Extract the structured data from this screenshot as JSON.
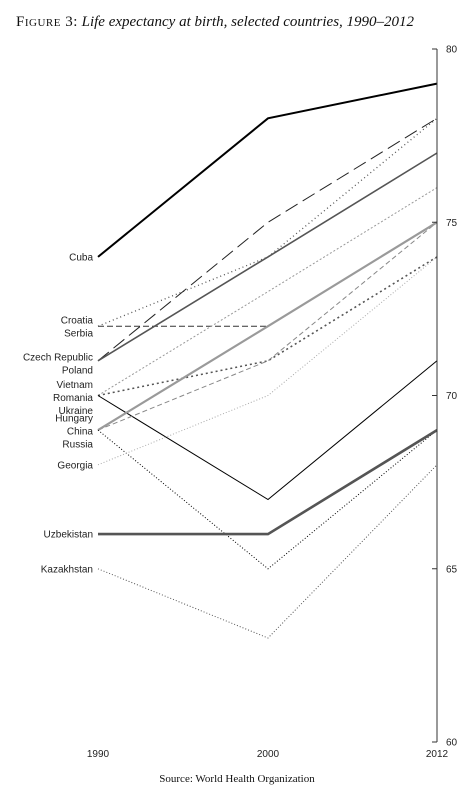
{
  "figure": {
    "label": "Figure 3:",
    "subtitle": "Life expectancy at birth, selected countries, 1990–2012",
    "source": "Source: World Health Organization"
  },
  "chart_data": {
    "type": "line",
    "title": "Figure 3: Life expectancy at birth, selected countries, 1990–2012",
    "x": [
      1990,
      2000,
      2012
    ],
    "x_tick_labels": [
      "1990",
      "2000",
      "2012"
    ],
    "ylim": [
      60,
      80
    ],
    "y_ticks": [
      60,
      65,
      70,
      75,
      80
    ],
    "y_axis_position": "right",
    "grid": false,
    "legend": "direct labels at left of 1990 points",
    "series": [
      {
        "name": "Cuba",
        "values": [
          74,
          78,
          79
        ],
        "color": "#000000",
        "dash": "solid",
        "width": 2
      },
      {
        "name": "Croatia",
        "values": [
          72,
          74,
          78
        ],
        "color": "#555555",
        "dash": "1,3",
        "width": 1.3
      },
      {
        "name": "Serbia",
        "values": [
          72,
          72,
          75
        ],
        "color": "#333333",
        "dash": "6,3",
        "width": 1
      },
      {
        "name": "Czech Republic",
        "values": [
          71,
          75,
          78
        ],
        "color": "#222222",
        "dash": "14,6",
        "width": 1
      },
      {
        "name": "Poland",
        "values": [
          71,
          74,
          77
        ],
        "color": "#555555",
        "dash": "solid",
        "width": 1.6
      },
      {
        "name": "Vietnam",
        "values": [
          70,
          73,
          76
        ],
        "color": "#999999",
        "dash": "2,2",
        "width": 1
      },
      {
        "name": "Romania",
        "values": [
          70,
          71,
          74
        ],
        "color": "#555555",
        "dash": "2,3",
        "width": 1.6
      },
      {
        "name": "Ukraine",
        "values": [
          70,
          67,
          71
        ],
        "color": "#000000",
        "dash": "solid",
        "width": 1
      },
      {
        "name": "Hungary",
        "values": [
          69,
          71,
          75
        ],
        "color": "#888888",
        "dash": "5,3",
        "width": 1
      },
      {
        "name": "China",
        "values": [
          69,
          72,
          75
        ],
        "color": "#9a9a9a",
        "dash": "solid",
        "width": 2.2
      },
      {
        "name": "Russia",
        "values": [
          69,
          65,
          69
        ],
        "color": "#000000",
        "dash": "1,2",
        "width": 1
      },
      {
        "name": "Georgia",
        "values": [
          68,
          70,
          74
        ],
        "color": "#aaaaaa",
        "dash": "1,2",
        "width": 1
      },
      {
        "name": "Uzbekistan",
        "values": [
          66,
          66,
          69
        ],
        "color": "#555555",
        "dash": "solid",
        "width": 2.6
      },
      {
        "name": "Kazakhstan",
        "values": [
          65,
          63,
          68
        ],
        "color": "#555555",
        "dash": "1,2",
        "width": 1
      }
    ]
  }
}
